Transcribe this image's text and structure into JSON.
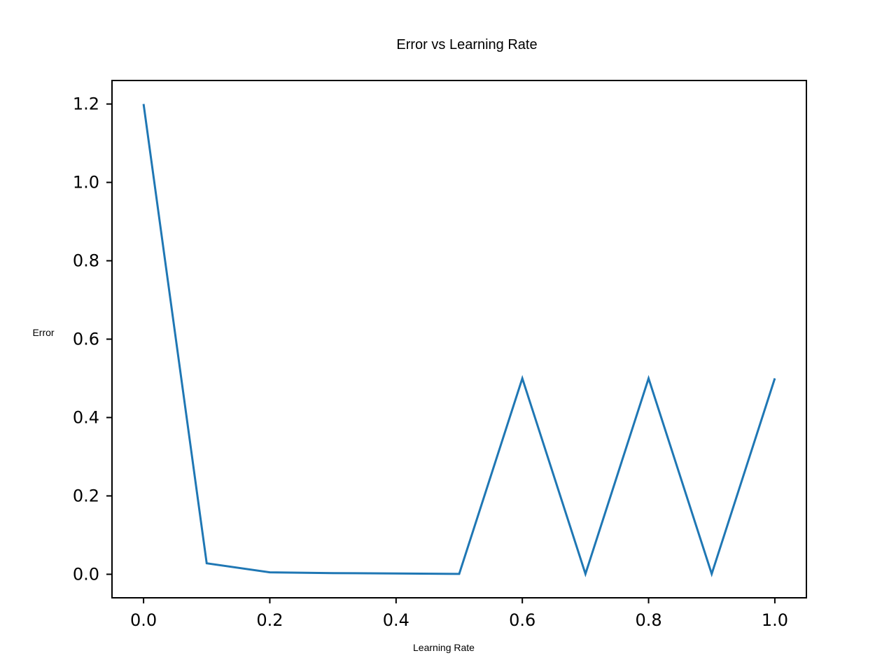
{
  "chart_data": {
    "type": "line",
    "title": "Error vs Learning Rate",
    "xlabel": "Learning Rate",
    "ylabel": "Error",
    "xlim": [
      -0.05,
      1.05
    ],
    "ylim": [
      -0.06,
      1.26
    ],
    "xticks": [
      0.0,
      0.2,
      0.4,
      0.6,
      0.8,
      1.0
    ],
    "yticks": [
      0.0,
      0.2,
      0.4,
      0.6,
      0.8,
      1.0,
      1.2
    ],
    "xtick_labels": [
      "0.0",
      "0.2",
      "0.4",
      "0.6",
      "0.8",
      "1.0"
    ],
    "ytick_labels": [
      "0.0",
      "0.2",
      "0.4",
      "0.6",
      "0.8",
      "1.0",
      "1.2"
    ],
    "grid": false,
    "x": [
      0.0,
      0.1,
      0.2,
      0.3,
      0.4,
      0.5,
      0.6,
      0.7,
      0.8,
      0.9,
      1.0
    ],
    "series": [
      {
        "values": [
          1.2,
          0.028,
          0.005,
          0.003,
          0.002,
          0.001,
          0.5,
          0.001,
          0.5,
          0.001,
          0.5
        ],
        "color": "#1f77b4"
      }
    ]
  }
}
